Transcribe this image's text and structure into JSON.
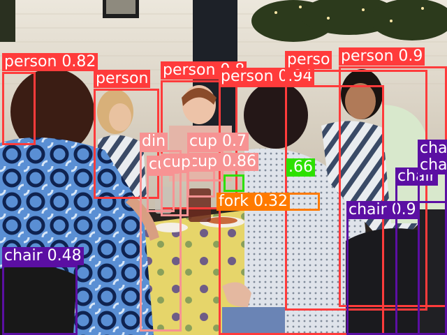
{
  "colors": {
    "person": "#ff3b3b",
    "chair": "#5b0fa3",
    "cup": "#f79393",
    "dining_table": "#f79393",
    "fork": "#ff7a00",
    "other": "#2de000"
  },
  "detections": [
    {
      "id": "person-left-back",
      "category": "person",
      "label": "person 0.82"
    },
    {
      "id": "person-blonde",
      "category": "person",
      "label": "person"
    },
    {
      "id": "person-center-back",
      "category": "person",
      "label": "person 0.8"
    },
    {
      "id": "person-center-front",
      "category": "person",
      "label": "person 0.94"
    },
    {
      "id": "person-right-shirt",
      "category": "person",
      "label": "perso"
    },
    {
      "id": "person-right-far",
      "category": "person",
      "label": "person 0.9"
    },
    {
      "id": "cup-1",
      "category": "cup",
      "label": "cup 0.7"
    },
    {
      "id": "cup-2",
      "category": "cup",
      "label": "cup 0.86"
    },
    {
      "id": "cup-3",
      "category": "cup",
      "label": "cup"
    },
    {
      "id": "cup-4",
      "category": "cup",
      "label": "cup"
    },
    {
      "id": "dining-table",
      "category": "dining_table",
      "label": "din"
    },
    {
      "id": "detection-green",
      "category": "other",
      "label": ".66"
    },
    {
      "id": "fork",
      "category": "fork",
      "label": "fork 0.32"
    },
    {
      "id": "chair-left",
      "category": "chair",
      "label": "chair 0.48"
    },
    {
      "id": "chair-right-front",
      "category": "chair",
      "label": "chair 0.9"
    },
    {
      "id": "chair-right-mid",
      "category": "chair",
      "label": "chair"
    },
    {
      "id": "chair-right-top",
      "category": "chair",
      "label": "cha"
    },
    {
      "id": "chair-right-top2",
      "category": "chair",
      "label": "cha"
    }
  ]
}
